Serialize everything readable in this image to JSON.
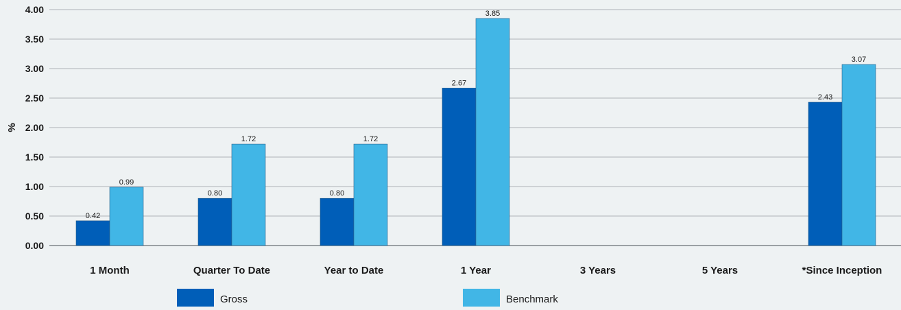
{
  "chart_data": {
    "type": "bar",
    "title": "",
    "xlabel": "",
    "ylabel": "%",
    "ylim": [
      0,
      4
    ],
    "yticks": [
      "0.00",
      "0.50",
      "1.00",
      "1.50",
      "2.00",
      "2.50",
      "3.00",
      "3.50",
      "4.00"
    ],
    "grid": true,
    "legend_position": "bottom",
    "categories": [
      "1 Month",
      "Quarter To Date",
      "Year to Date",
      "1 Year",
      "3 Years",
      "5 Years",
      "*Since Inception"
    ],
    "series": [
      {
        "name": "Gross",
        "color": "#005eb8",
        "values": [
          0.42,
          0.8,
          0.8,
          2.67,
          null,
          null,
          2.43
        ],
        "labels": [
          "0.42",
          "0.80",
          "0.80",
          "2.67",
          "",
          "",
          "2.43"
        ]
      },
      {
        "name": "Benchmark",
        "color": "#41b6e6",
        "values": [
          0.99,
          1.72,
          1.72,
          3.85,
          null,
          null,
          3.07
        ],
        "labels": [
          "0.99",
          "1.72",
          "1.72",
          "3.85",
          "",
          "",
          "3.07"
        ]
      }
    ]
  }
}
